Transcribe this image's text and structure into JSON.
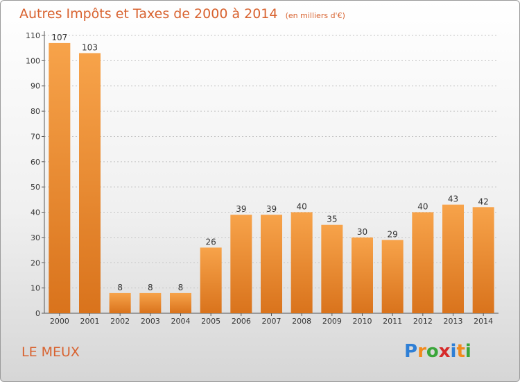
{
  "header": {
    "title": "Autres Impôts et Taxes de 2000 à 2014",
    "unit": "(en milliers d'€)"
  },
  "footer": {
    "commune": "LE MEUX",
    "logo": {
      "letters": [
        "P",
        "r",
        "o",
        "x",
        "i",
        "t",
        "i"
      ],
      "colors": [
        "#2e7fd6",
        "#f28a1c",
        "#3aa63a",
        "#d62a2a",
        "#2e7fd6",
        "#f28a1c",
        "#3aa63a"
      ]
    }
  },
  "colors": {
    "bar": "#f28d2e",
    "bar_dark": "#d8701e",
    "title": "#d8622f"
  },
  "chart_data": {
    "type": "bar",
    "title": "Autres Impôts et Taxes de 2000 à 2014",
    "subtitle": "(en milliers d'€)",
    "categories": [
      "2000",
      "2001",
      "2002",
      "2003",
      "2004",
      "2005",
      "2006",
      "2007",
      "2008",
      "2009",
      "2010",
      "2011",
      "2012",
      "2013",
      "2014"
    ],
    "values": [
      107,
      103,
      8,
      8,
      8,
      26,
      39,
      39,
      40,
      35,
      30,
      29,
      40,
      43,
      42
    ],
    "ylim": [
      0,
      110
    ],
    "yticks": [
      0,
      10,
      20,
      30,
      40,
      50,
      60,
      70,
      80,
      90,
      100,
      110
    ],
    "grid": true,
    "legend": "none"
  }
}
